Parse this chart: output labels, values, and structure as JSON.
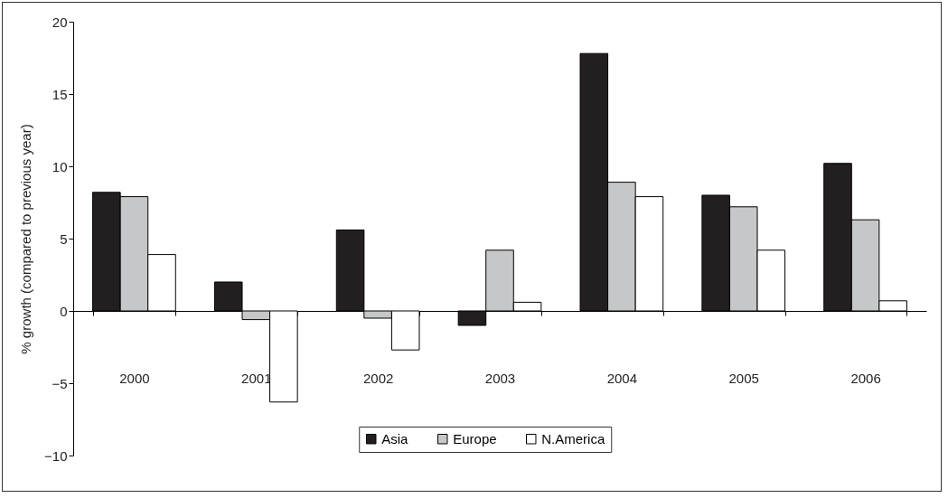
{
  "chart_data": {
    "type": "bar",
    "ylabel": "% growth (compared to previous year)",
    "categories": [
      "2000",
      "2001",
      "2002",
      "2003",
      "2004",
      "2005",
      "2006"
    ],
    "series": [
      {
        "name": "Asia",
        "color": "#231f20",
        "values": [
          8.2,
          2.0,
          5.6,
          -1.0,
          17.8,
          8.0,
          10.2
        ]
      },
      {
        "name": "Europe",
        "color": "#c6c7c8",
        "values": [
          7.9,
          -0.6,
          -0.5,
          4.2,
          8.9,
          7.2,
          6.3
        ]
      },
      {
        "name": "N.America",
        "color": "#ffffff",
        "values": [
          3.9,
          -6.3,
          -2.7,
          0.6,
          7.9,
          4.2,
          0.7
        ]
      }
    ],
    "ylim": [
      -10,
      20
    ],
    "yticks": [
      -10,
      -5,
      0,
      5,
      10,
      15,
      20
    ],
    "legend": "bottom"
  }
}
